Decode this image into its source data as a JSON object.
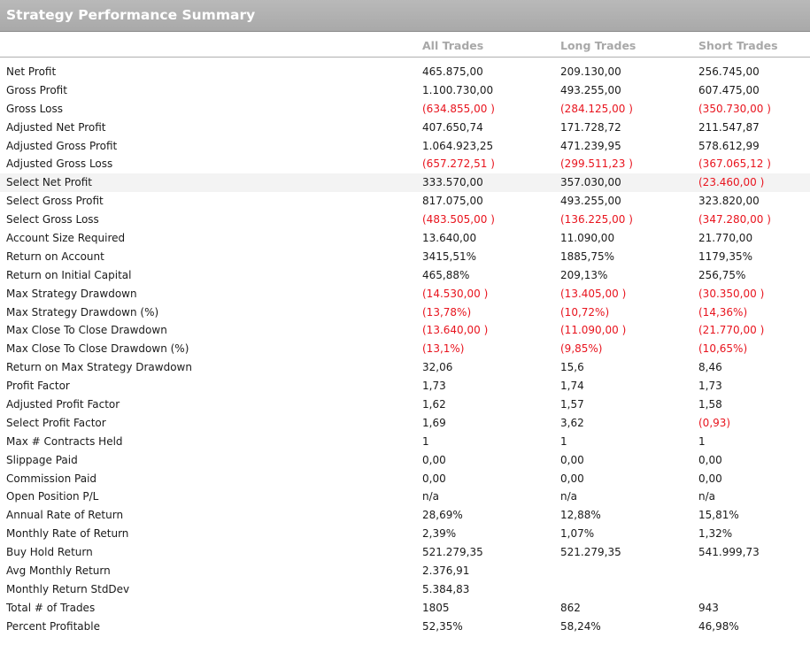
{
  "title": "Strategy Performance Summary",
  "columns": [
    "",
    "All Trades",
    "Long Trades",
    "Short Trades"
  ],
  "colors": {
    "negative": "#e8141e",
    "header": "#a8a8a8",
    "titlebar": "#aeaeae"
  },
  "rows": [
    {
      "label": "Net Profit",
      "all": "465.875,00",
      "long": "209.130,00",
      "short": "256.745,00"
    },
    {
      "label": "Gross Profit",
      "all": "1.100.730,00",
      "long": "493.255,00",
      "short": "607.475,00"
    },
    {
      "label": "Gross Loss",
      "all": "(634.855,00 )",
      "long": "(284.125,00 )",
      "short": "(350.730,00 )"
    },
    {
      "label": "Adjusted Net Profit",
      "all": "407.650,74",
      "long": "171.728,72",
      "short": "211.547,87"
    },
    {
      "label": "Adjusted Gross Profit",
      "all": "1.064.923,25",
      "long": "471.239,95",
      "short": "578.612,99"
    },
    {
      "label": "Adjusted Gross Loss",
      "all": "(657.272,51 )",
      "long": "(299.511,23 )",
      "short": "(367.065,12 )"
    },
    {
      "label": "Select Net Profit",
      "all": "333.570,00",
      "long": "357.030,00",
      "short": "(23.460,00 )"
    },
    {
      "label": "Select Gross Profit",
      "all": "817.075,00",
      "long": "493.255,00",
      "short": "323.820,00"
    },
    {
      "label": "Select Gross Loss",
      "all": "(483.505,00 )",
      "long": "(136.225,00 )",
      "short": "(347.280,00 )"
    },
    {
      "label": "Account Size Required",
      "all": "13.640,00",
      "long": "11.090,00",
      "short": "21.770,00"
    },
    {
      "label": "Return on Account",
      "all": "3415,51%",
      "long": "1885,75%",
      "short": "1179,35%"
    },
    {
      "label": "Return on Initial Capital",
      "all": "465,88%",
      "long": "209,13%",
      "short": "256,75%"
    },
    {
      "label": "Max Strategy Drawdown",
      "all": "(14.530,00 )",
      "long": "(13.405,00 )",
      "short": "(30.350,00 )"
    },
    {
      "label": "Max Strategy Drawdown (%)",
      "all": "(13,78%)",
      "long": "(10,72%)",
      "short": "(14,36%)"
    },
    {
      "label": "Max Close To Close Drawdown",
      "all": "(13.640,00 )",
      "long": "(11.090,00 )",
      "short": "(21.770,00 )"
    },
    {
      "label": "Max Close To Close Drawdown (%)",
      "all": "(13,1%)",
      "long": "(9,85%)",
      "short": "(10,65%)"
    },
    {
      "label": "Return on Max Strategy Drawdown",
      "all": "32,06",
      "long": "15,6",
      "short": "8,46"
    },
    {
      "label": "Profit Factor",
      "all": "1,73",
      "long": "1,74",
      "short": "1,73"
    },
    {
      "label": "Adjusted Profit Factor",
      "all": "1,62",
      "long": "1,57",
      "short": "1,58"
    },
    {
      "label": "Select Profit Factor",
      "all": "1,69",
      "long": "3,62",
      "short": "(0,93)"
    },
    {
      "label": "Max # Contracts Held",
      "all": "1",
      "long": "1",
      "short": "1"
    },
    {
      "label": "Slippage Paid",
      "all": "0,00",
      "long": "0,00",
      "short": "0,00"
    },
    {
      "label": "Commission Paid",
      "all": "0,00",
      "long": "0,00",
      "short": "0,00"
    },
    {
      "label": "Open Position P/L",
      "all": "n/a",
      "long": "n/a",
      "short": "n/a"
    },
    {
      "label": "Annual Rate of Return",
      "all": "28,69%",
      "long": "12,88%",
      "short": "15,81%"
    },
    {
      "label": "Monthly Rate of Return",
      "all": "2,39%",
      "long": "1,07%",
      "short": "1,32%"
    },
    {
      "label": "Buy  Hold Return",
      "all": "521.279,35",
      "long": "521.279,35",
      "short": "541.999,73"
    },
    {
      "label": "Avg Monthly Return",
      "all": "2.376,91",
      "long": "",
      "short": ""
    },
    {
      "label": "Monthly Return StdDev",
      "all": "5.384,83",
      "long": "",
      "short": ""
    },
    {
      "label": "Total # of Trades",
      "all": "1805",
      "long": "862",
      "short": "943"
    },
    {
      "label": "Percent Profitable",
      "all": "52,35%",
      "long": "58,24%",
      "short": "46,98%"
    }
  ]
}
